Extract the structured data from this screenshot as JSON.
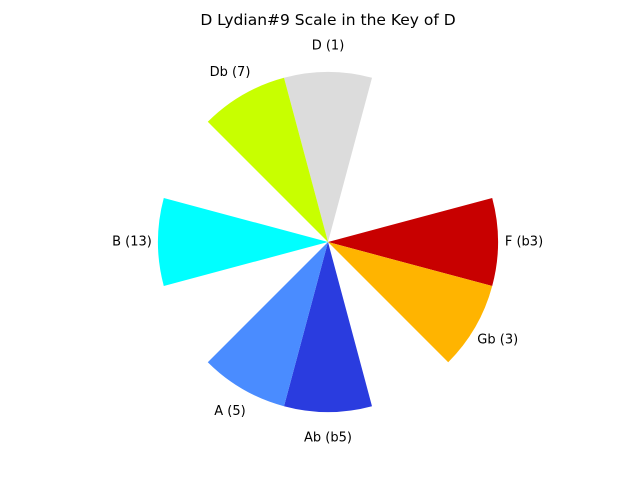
{
  "chart_data": {
    "type": "pie",
    "title": "D Lydian#9 Scale in the Key of D",
    "legend": "none",
    "slices": [
      {
        "label": "D (1)",
        "angle_deg": 0,
        "radius": 1.0,
        "color": "#dcdcdc"
      },
      {
        "label": "F (b3)",
        "angle_deg": 270,
        "radius": 1.0,
        "color": "#c80000"
      },
      {
        "label": "Gb (3)",
        "angle_deg": 240,
        "radius": 1.0,
        "color": "#ffb400"
      },
      {
        "label": "Ab (b5)",
        "angle_deg": 180,
        "radius": 1.0,
        "color": "#2a3cdf"
      },
      {
        "label": "A (5)",
        "angle_deg": 150,
        "radius": 1.0,
        "color": "#4a8cff"
      },
      {
        "label": "B (13)",
        "angle_deg": 90,
        "radius": 1.0,
        "color": "#00ffff"
      },
      {
        "label": "Db (7)",
        "angle_deg": 30,
        "radius": 1.0,
        "color": "#c8ff00"
      }
    ],
    "slice_width_deg": 30
  }
}
